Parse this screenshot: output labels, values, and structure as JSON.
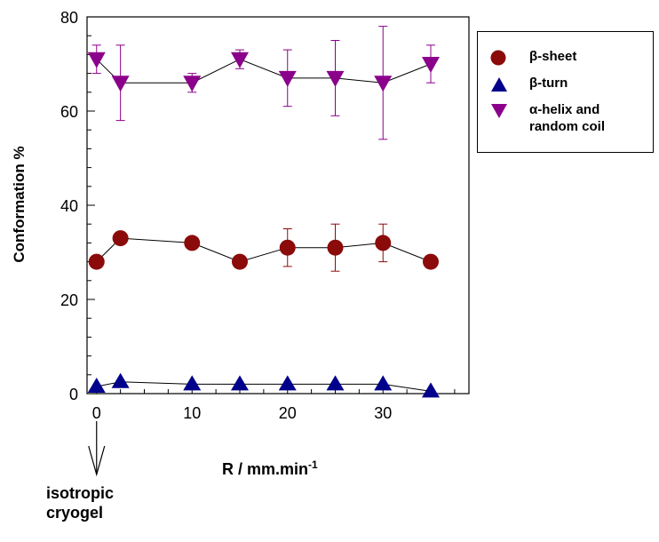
{
  "chart_data": {
    "type": "scatter",
    "title": "",
    "xlabel": "R  /  mm.min",
    "xlabel_superscript": "-1",
    "ylabel": "Conformation %",
    "xlim": [
      -1,
      39
    ],
    "ylim": [
      0,
      80
    ],
    "x_ticks": [
      0,
      10,
      20,
      30
    ],
    "y_ticks": [
      0,
      20,
      40,
      60,
      80
    ],
    "grid": false,
    "legend_placement": "outside-right-top",
    "annotation": "isotropic\ncryogel",
    "annotation_x": 0,
    "series": [
      {
        "name": "β-sheet",
        "marker": "circle",
        "color": "#8B0A0A",
        "x": [
          0,
          2.5,
          10,
          15,
          20,
          25,
          30,
          35
        ],
        "y": [
          28,
          33,
          32,
          28,
          31,
          31,
          32,
          28
        ],
        "yerr": [
          0,
          0,
          0,
          0,
          4,
          5,
          4,
          0
        ]
      },
      {
        "name": "β-turn",
        "marker": "triangle-up",
        "color": "#00008B",
        "x": [
          0,
          2.5,
          10,
          15,
          20,
          25,
          30,
          35
        ],
        "y": [
          1.5,
          2.5,
          2,
          2,
          2,
          2,
          2,
          0.5
        ],
        "yerr": [
          0,
          0,
          0,
          0,
          0,
          0,
          0,
          0
        ]
      },
      {
        "name": "α-helix and\nrandom coil",
        "marker": "triangle-down",
        "color": "#8B008B",
        "x": [
          0,
          2.5,
          10,
          15,
          20,
          25,
          30,
          35
        ],
        "y": [
          71,
          66,
          66,
          71,
          67,
          67,
          66,
          70
        ],
        "yerr": [
          3,
          8,
          2,
          2,
          6,
          8,
          12,
          4
        ]
      }
    ]
  }
}
